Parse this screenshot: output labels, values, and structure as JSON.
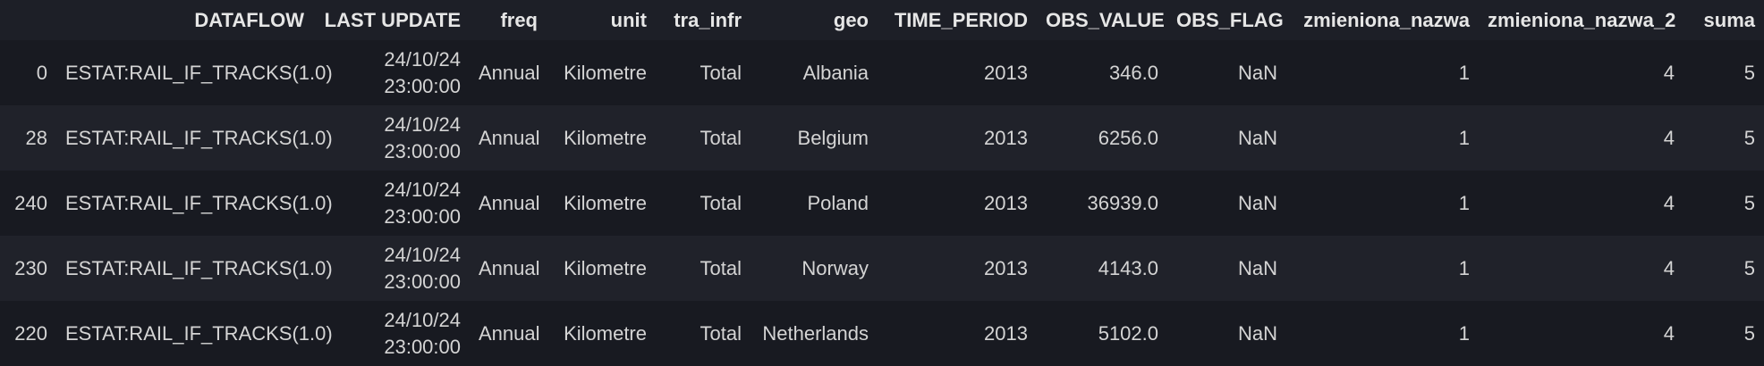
{
  "table": {
    "columns": [
      "",
      "DATAFLOW",
      "LAST UPDATE",
      "freq",
      "unit",
      "tra_infr",
      "geo",
      "TIME_PERIOD",
      "OBS_VALUE",
      "OBS_FLAG",
      "zmieniona_nazwa",
      "zmieniona_nazwa_2",
      "suma"
    ],
    "rows": [
      {
        "index": "0",
        "dataflow": "ESTAT:RAIL_IF_TRACKS(1.0)",
        "last_update_date": "24/10/24",
        "last_update_time": "23:00:00",
        "freq": "Annual",
        "unit": "Kilometre",
        "tra_infr": "Total",
        "geo": "Albania",
        "time_period": "2013",
        "obs_value": "346.0",
        "obs_flag": "NaN",
        "zmieniona_nazwa": "1",
        "zmieniona_nazwa_2": "4",
        "suma": "5"
      },
      {
        "index": "28",
        "dataflow": "ESTAT:RAIL_IF_TRACKS(1.0)",
        "last_update_date": "24/10/24",
        "last_update_time": "23:00:00",
        "freq": "Annual",
        "unit": "Kilometre",
        "tra_infr": "Total",
        "geo": "Belgium",
        "time_period": "2013",
        "obs_value": "6256.0",
        "obs_flag": "NaN",
        "zmieniona_nazwa": "1",
        "zmieniona_nazwa_2": "4",
        "suma": "5"
      },
      {
        "index": "240",
        "dataflow": "ESTAT:RAIL_IF_TRACKS(1.0)",
        "last_update_date": "24/10/24",
        "last_update_time": "23:00:00",
        "freq": "Annual",
        "unit": "Kilometre",
        "tra_infr": "Total",
        "geo": "Poland",
        "time_period": "2013",
        "obs_value": "36939.0",
        "obs_flag": "NaN",
        "zmieniona_nazwa": "1",
        "zmieniona_nazwa_2": "4",
        "suma": "5"
      },
      {
        "index": "230",
        "dataflow": "ESTAT:RAIL_IF_TRACKS(1.0)",
        "last_update_date": "24/10/24",
        "last_update_time": "23:00:00",
        "freq": "Annual",
        "unit": "Kilometre",
        "tra_infr": "Total",
        "geo": "Norway",
        "time_period": "2013",
        "obs_value": "4143.0",
        "obs_flag": "NaN",
        "zmieniona_nazwa": "1",
        "zmieniona_nazwa_2": "4",
        "suma": "5"
      },
      {
        "index": "220",
        "dataflow": "ESTAT:RAIL_IF_TRACKS(1.0)",
        "last_update_date": "24/10/24",
        "last_update_time": "23:00:00",
        "freq": "Annual",
        "unit": "Kilometre",
        "tra_infr": "Total",
        "geo": "Netherlands",
        "time_period": "2013",
        "obs_value": "5102.0",
        "obs_flag": "NaN",
        "zmieniona_nazwa": "1",
        "zmieniona_nazwa_2": "4",
        "suma": "5"
      }
    ]
  },
  "colors": {
    "background": "#181a21",
    "row_alt": "#20222a",
    "header_bg": "#1d1f27",
    "text": "#d4d4d4"
  }
}
